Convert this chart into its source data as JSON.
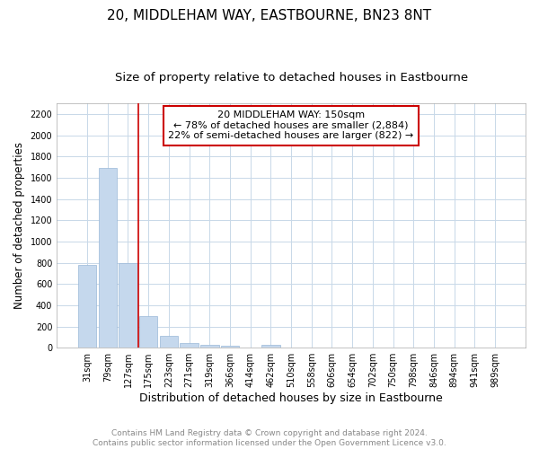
{
  "title": "20, MIDDLEHAM WAY, EASTBOURNE, BN23 8NT",
  "subtitle": "Size of property relative to detached houses in Eastbourne",
  "xlabel": "Distribution of detached houses by size in Eastbourne",
  "ylabel": "Number of detached properties",
  "categories": [
    "31sqm",
    "79sqm",
    "127sqm",
    "175sqm",
    "223sqm",
    "271sqm",
    "319sqm",
    "366sqm",
    "414sqm",
    "462sqm",
    "510sqm",
    "558sqm",
    "606sqm",
    "654sqm",
    "702sqm",
    "750sqm",
    "798sqm",
    "846sqm",
    "894sqm",
    "941sqm",
    "989sqm"
  ],
  "values": [
    775,
    1690,
    800,
    295,
    115,
    42,
    28,
    22,
    0,
    28,
    0,
    0,
    0,
    0,
    0,
    0,
    0,
    0,
    0,
    0,
    0
  ],
  "bar_color": "#c5d8ed",
  "bar_edge_color": "#9ab8d8",
  "grid_color": "#c8d8e8",
  "background_color": "#ffffff",
  "fig_background_color": "#ffffff",
  "red_line_x": 2.5,
  "annotation_text": "20 MIDDLEHAM WAY: 150sqm\n← 78% of detached houses are smaller (2,884)\n22% of semi-detached houses are larger (822) →",
  "annotation_box_color": "#ffffff",
  "annotation_box_edge": "#cc0000",
  "ylim": [
    0,
    2300
  ],
  "yticks": [
    0,
    200,
    400,
    600,
    800,
    1000,
    1200,
    1400,
    1600,
    1800,
    2000,
    2200
  ],
  "footer_text": "Contains HM Land Registry data © Crown copyright and database right 2024.\nContains public sector information licensed under the Open Government Licence v3.0.",
  "title_fontsize": 11,
  "subtitle_fontsize": 9.5,
  "ylabel_fontsize": 8.5,
  "xlabel_fontsize": 9,
  "tick_fontsize": 7,
  "annotation_fontsize": 8,
  "footer_fontsize": 6.5
}
